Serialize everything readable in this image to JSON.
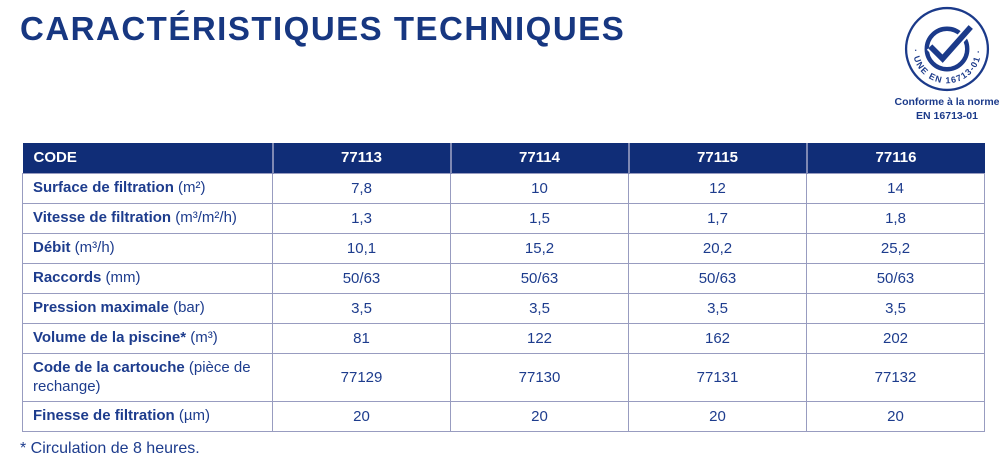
{
  "page": {
    "title": "CARACTÉRISTIQUES TECHNIQUES",
    "footnote": "* Circulation de 8 heures."
  },
  "badge": {
    "ring_text": "· UNE EN 16713-01 ·",
    "caption_line1": "Conforme à la norme",
    "caption_line2": "EN 16713-01"
  },
  "colors": {
    "title_navy": "#173781",
    "header_bg": "#102d77",
    "cell_text": "#1d3c8d",
    "grid_border": "#989cc0",
    "badge_navy": "#1b3a8a"
  },
  "table": {
    "columns": [
      "CODE",
      "77113",
      "77114",
      "77115",
      "77116"
    ],
    "rows": [
      {
        "label": "Surface de filtration",
        "unit": "(m²)",
        "values": [
          "7,8",
          "10",
          "12",
          "14"
        ]
      },
      {
        "label": "Vitesse de filtration",
        "unit": "(m³/m²/h)",
        "values": [
          "1,3",
          "1,5",
          "1,7",
          "1,8"
        ]
      },
      {
        "label": "Débit",
        "unit": "(m³/h)",
        "values": [
          "10,1",
          "15,2",
          "20,2",
          "25,2"
        ]
      },
      {
        "label": "Raccords",
        "unit": "(mm)",
        "values": [
          "50/63",
          "50/63",
          "50/63",
          "50/63"
        ]
      },
      {
        "label": "Pression maximale",
        "unit": "(bar)",
        "values": [
          "3,5",
          "3,5",
          "3,5",
          "3,5"
        ]
      },
      {
        "label": "Volume de la piscine*",
        "unit": "(m³)",
        "values": [
          "81",
          "122",
          "162",
          "202"
        ]
      },
      {
        "label": "Code de la cartouche",
        "unit": "(pièce de rechange)",
        "values": [
          "77129",
          "77130",
          "77131",
          "77132"
        ]
      },
      {
        "label": "Finesse de filtration",
        "unit": "(µm)",
        "values": [
          "20",
          "20",
          "20",
          "20"
        ]
      }
    ]
  }
}
